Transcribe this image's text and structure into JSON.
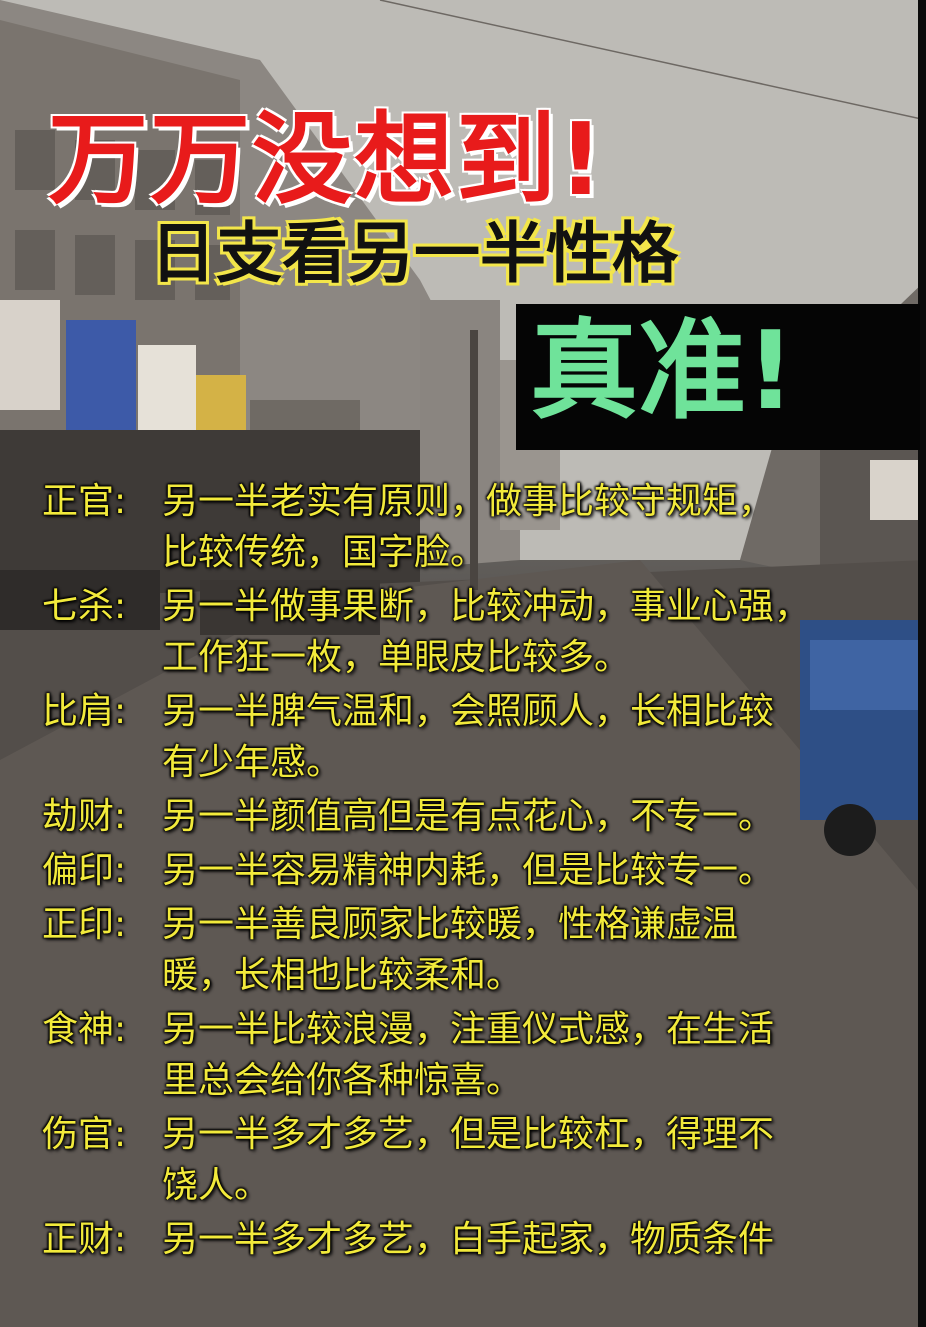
{
  "title": {
    "main": "万万没想到!",
    "sub": "日支看另一半性格",
    "badge": "真准!"
  },
  "entries": [
    {
      "key": "正官:",
      "text": "另一半老实有原则，做事比较守规矩，\n比较传统，国字脸。"
    },
    {
      "key": "七杀:",
      "text": "另一半做事果断，比较冲动，事业心强，\n工作狂一枚，单眼皮比较多。"
    },
    {
      "key": "比肩:",
      "text": "另一半脾气温和，会照顾人，长相比较\n有少年感。"
    },
    {
      "key": "劫财:",
      "text": "另一半颜值高但是有点花心，不专一。"
    },
    {
      "key": "偏印:",
      "text": "另一半容易精神内耗，但是比较专一。"
    },
    {
      "key": "正印:",
      "text": "另一半善良顾家比较暖，性格谦虚温\n暖，长相也比较柔和。"
    },
    {
      "key": "食神:",
      "text": "另一半比较浪漫，注重仪式感，在生活\n里总会给你各种惊喜。"
    },
    {
      "key": "伤官:",
      "text": "另一半多才多艺，但是比较杠，得理不\n饶人。"
    },
    {
      "key": "正财:",
      "text": "另一半多才多艺，白手起家，物质条件"
    }
  ],
  "colors": {
    "headline": "#e81b1b",
    "subheadline_outline": "#f3e64a",
    "badge_text": "#6fe39a",
    "body_text": "#f2ea3b"
  }
}
